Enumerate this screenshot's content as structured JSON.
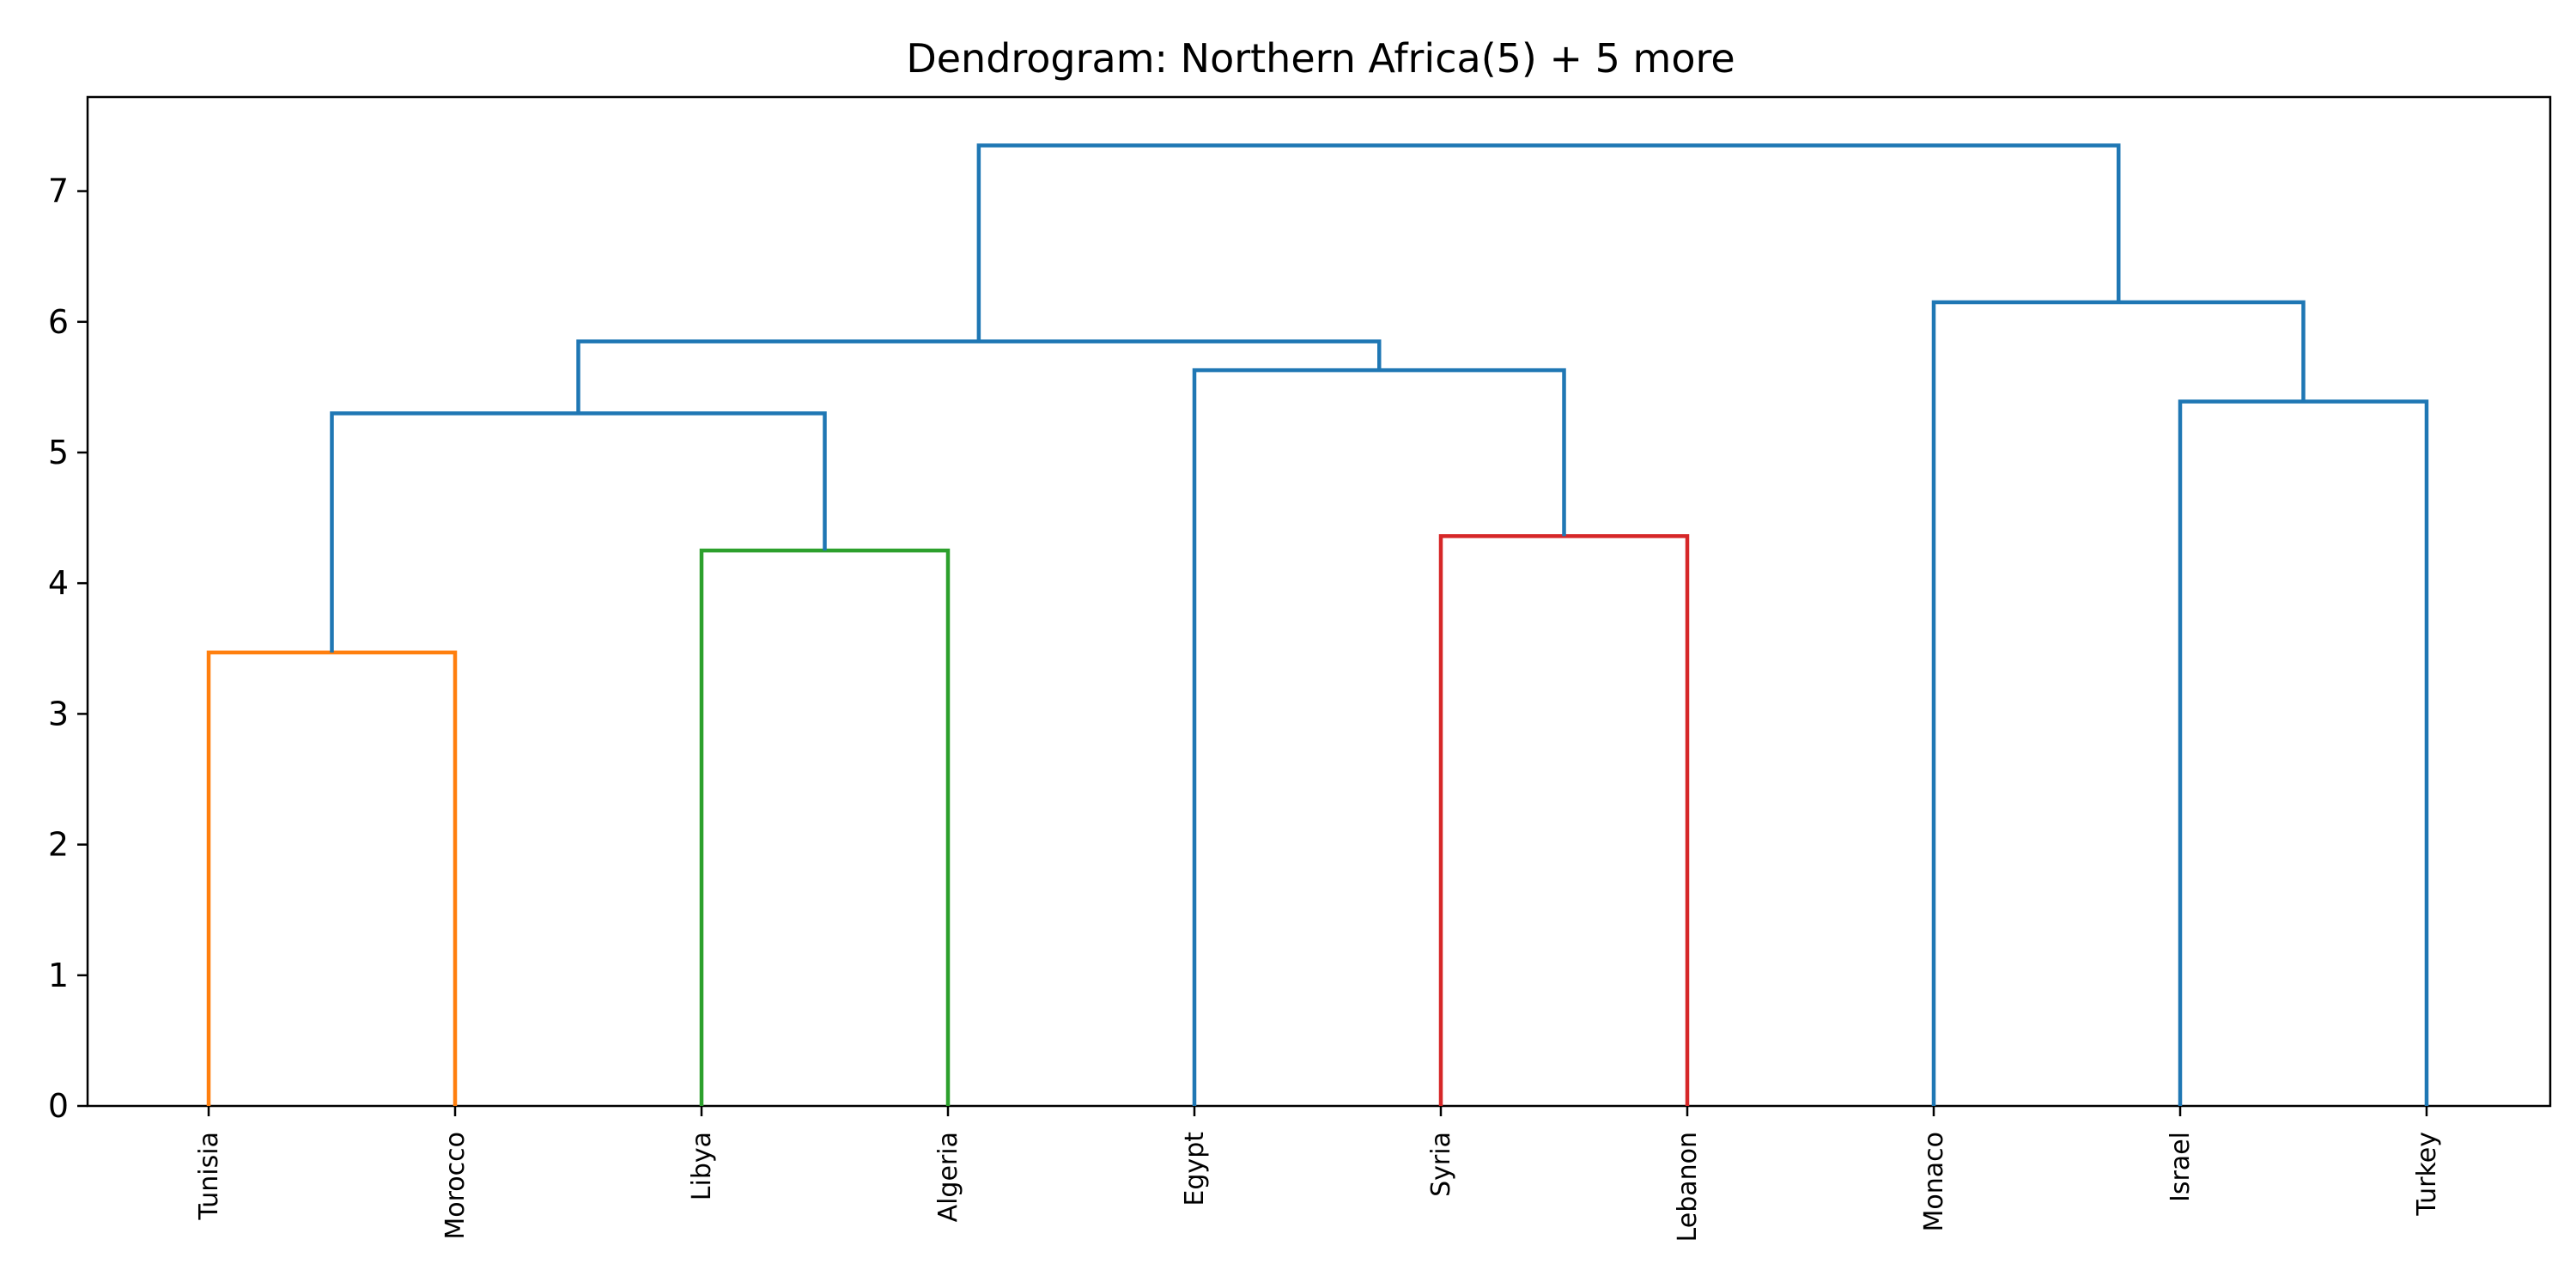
{
  "chart_data": {
    "type": "dendrogram",
    "title": "Dendrogram: Northern Africa(5) + 5 more",
    "xlabel": "",
    "ylabel": "",
    "ylim": [
      0,
      7.72
    ],
    "yticks": [
      0,
      1,
      2,
      3,
      4,
      5,
      6,
      7
    ],
    "grid": false,
    "legend": "none",
    "leaves": [
      "Tunisia",
      "Morocco",
      "Libya",
      "Algeria",
      "Egypt",
      "Syria",
      "Lebanon",
      "Monaco",
      "Israel",
      "Turkey"
    ],
    "colors": {
      "above_threshold": "#1f77b4",
      "cluster_1": "#ff7f0e",
      "cluster_2": "#2ca02c",
      "cluster_3": "#d62728"
    },
    "merges": [
      {
        "left": "Tunisia",
        "right": "Morocco",
        "height": 3.47,
        "color": "#ff7f0e"
      },
      {
        "left": "Libya",
        "right": "Algeria",
        "height": 4.25,
        "color": "#2ca02c"
      },
      {
        "left": "Syria",
        "right": "Lebanon",
        "height": 4.36,
        "color": "#d62728"
      },
      {
        "left": "Tunisia+Morocco",
        "right": "Libya+Algeria",
        "height": 5.3,
        "color": "#1f77b4"
      },
      {
        "left": "Israel",
        "right": "Turkey",
        "height": 5.39,
        "color": "#1f77b4"
      },
      {
        "left": "Egypt",
        "right": "Syria+Lebanon",
        "height": 5.63,
        "color": "#1f77b4"
      },
      {
        "left": "Tunisia+Morocco+Libya+Algeria",
        "right": "Egypt+Syria+Lebanon",
        "height": 5.85,
        "color": "#1f77b4"
      },
      {
        "left": "Monaco",
        "right": "Israel+Turkey",
        "height": 6.15,
        "color": "#1f77b4"
      },
      {
        "left": "Tunisia+Morocco+Libya+Algeria+Egypt+Syria+Lebanon",
        "right": "Monaco+Israel+Turkey",
        "height": 7.35,
        "color": "#1f77b4"
      }
    ]
  }
}
